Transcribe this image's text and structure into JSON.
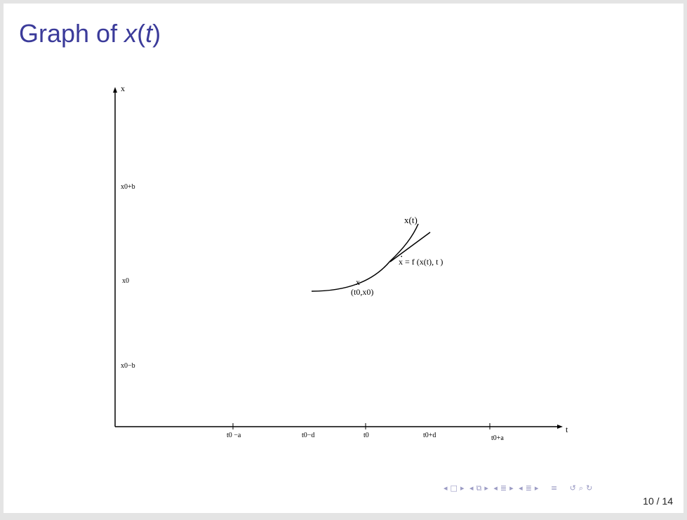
{
  "slide": {
    "title_prefix": "Graph of ",
    "title_var": "x",
    "title_paren_open": "(",
    "title_var_t": "t",
    "title_paren_close": ")"
  },
  "diagram": {
    "axis_x_label": "t",
    "axis_y_label": "x",
    "y_ticks": {
      "upper": "x0+b",
      "middle": "x0",
      "lower": "x0−b"
    },
    "x_ticks": {
      "t0_minus_a": "t0 −a",
      "t0_minus_d": "t0−d",
      "t0": "t0",
      "t0_plus_d": "t0+d",
      "t0_plus_a": "t0+a"
    },
    "curve_label": "x(t)",
    "point_mark": "x",
    "point_label": "(t0,x0)",
    "tangent_label": "x = f (x(t), t )",
    "tangent_dot": "•"
  },
  "navigation": {
    "icons": [
      "prev-frame-icon",
      "frame-icon",
      "next-frame-icon",
      "prev-subsection-icon",
      "subsection-icon",
      "next-subsection-icon",
      "prev-section-icon",
      "section-icon",
      "next-section-icon",
      "align-icon",
      "undo-icon",
      "search-icon",
      "redo-icon"
    ],
    "page_number": "10 / 14"
  }
}
